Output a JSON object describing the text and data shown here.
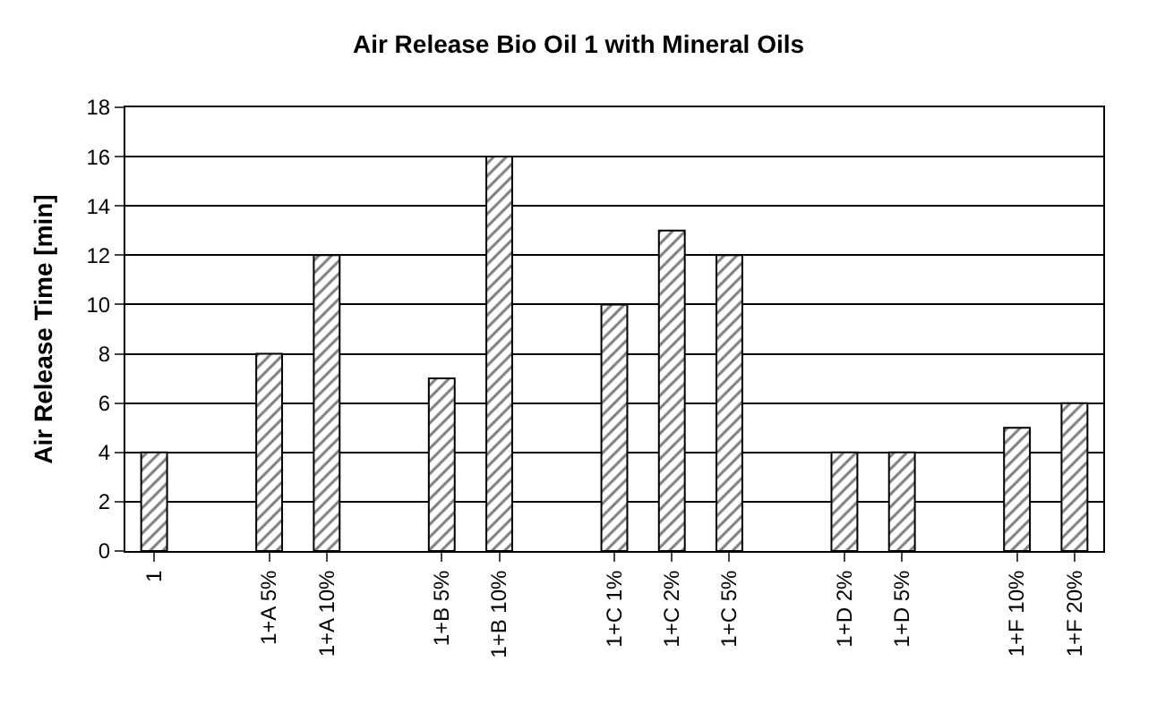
{
  "chart_data": {
    "type": "bar",
    "title": "Air Release Bio Oil 1 with Mineral Oils",
    "ylabel": "Air Release Time [min]",
    "categories": [
      "1",
      null,
      "1+A 5%",
      "1+A 10%",
      null,
      "1+B 5%",
      "1+B 10%",
      null,
      "1+C 1%",
      "1+C 2%",
      "1+C 5%",
      null,
      "1+D 2%",
      "1+D 5%",
      null,
      "1+F 10%",
      "1+F 20%"
    ],
    "values": [
      4,
      null,
      8,
      12,
      null,
      7,
      16,
      null,
      10,
      13,
      12,
      null,
      4,
      4,
      null,
      5,
      6
    ],
    "color": "#000000",
    "ylim": [
      0,
      18
    ],
    "yticks": [
      0,
      2,
      4,
      6,
      8,
      10,
      12,
      14,
      16,
      18
    ],
    "grid": "y"
  }
}
